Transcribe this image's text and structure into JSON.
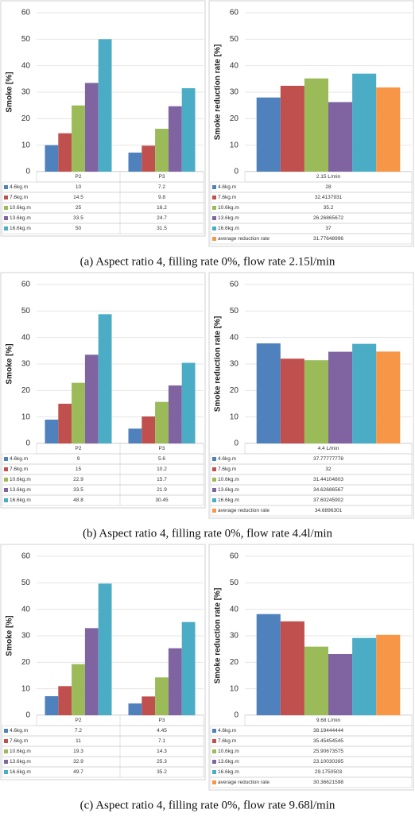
{
  "chart_data": [
    {
      "type": "bar",
      "ylabel": "Smoke [%]",
      "categories": [
        "P2",
        "P3"
      ],
      "ylim": [
        0,
        60
      ],
      "yticks": [
        0,
        10,
        20,
        30,
        40,
        50,
        60
      ],
      "grid": true,
      "series": [
        {
          "name": "4.6kg.m",
          "color": "#4f81bd",
          "values": [
            10,
            7.2
          ]
        },
        {
          "name": "7.6kg.m",
          "color": "#c0504d",
          "values": [
            14.5,
            9.8
          ]
        },
        {
          "name": "10.6kg.m",
          "color": "#9bbb59",
          "values": [
            25,
            16.2
          ]
        },
        {
          "name": "13.6kg.m",
          "color": "#8064a2",
          "values": [
            33.5,
            24.7
          ]
        },
        {
          "name": "16.6kg.m",
          "color": "#4bacc6",
          "values": [
            50,
            31.5
          ]
        }
      ]
    },
    {
      "type": "bar",
      "ylabel": "Smoke reduction rate [%]",
      "categories": [
        "2.15 L/min"
      ],
      "ylim": [
        0,
        60
      ],
      "yticks": [
        0,
        10,
        20,
        30,
        40,
        50,
        60
      ],
      "grid": true,
      "series": [
        {
          "name": "4.6kg.m",
          "color": "#4f81bd",
          "values": [
            28
          ]
        },
        {
          "name": "7.6kg.m",
          "color": "#c0504d",
          "values": [
            32.4137931
          ]
        },
        {
          "name": "10.6kg.m",
          "color": "#9bbb59",
          "values": [
            35.2
          ]
        },
        {
          "name": "13.6kg.m",
          "color": "#8064a2",
          "values": [
            26.26865672
          ]
        },
        {
          "name": "16.6kg.m",
          "color": "#4bacc6",
          "values": [
            37
          ]
        },
        {
          "name": "average reduction rate",
          "color": "#f79646",
          "values": [
            31.77648996
          ]
        }
      ]
    },
    {
      "type": "bar",
      "ylabel": "Smoke [%]",
      "categories": [
        "P2",
        "P3"
      ],
      "ylim": [
        0,
        60
      ],
      "yticks": [
        0,
        10,
        20,
        30,
        40,
        50,
        60
      ],
      "grid": true,
      "series": [
        {
          "name": "4.6kg.m",
          "color": "#4f81bd",
          "values": [
            9,
            5.6
          ]
        },
        {
          "name": "7.6kg.m",
          "color": "#c0504d",
          "values": [
            15,
            10.2
          ]
        },
        {
          "name": "10.6kg.m",
          "color": "#9bbb59",
          "values": [
            22.9,
            15.7
          ]
        },
        {
          "name": "13.6kg.m",
          "color": "#8064a2",
          "values": [
            33.5,
            21.9
          ]
        },
        {
          "name": "16.6kg.m",
          "color": "#4bacc6",
          "values": [
            48.8,
            30.45
          ]
        }
      ]
    },
    {
      "type": "bar",
      "ylabel": "Smoke reduction rate [%]",
      "categories": [
        "4.4 L/min"
      ],
      "ylim": [
        0,
        60
      ],
      "yticks": [
        0,
        10,
        20,
        30,
        40,
        50,
        60
      ],
      "grid": true,
      "series": [
        {
          "name": "4.6kg.m",
          "color": "#4f81bd",
          "values": [
            37.77777778
          ]
        },
        {
          "name": "7.6kg.m",
          "color": "#c0504d",
          "values": [
            32
          ]
        },
        {
          "name": "10.6kg.m",
          "color": "#9bbb59",
          "values": [
            31.44104803
          ]
        },
        {
          "name": "13.6kg.m",
          "color": "#8064a2",
          "values": [
            34.62686567
          ]
        },
        {
          "name": "16.6kg.m",
          "color": "#4bacc6",
          "values": [
            37.60245902
          ]
        },
        {
          "name": "average reduction rate",
          "color": "#f79646",
          "values": [
            34.6896301
          ]
        }
      ]
    },
    {
      "type": "bar",
      "ylabel": "Smoke [%]",
      "categories": [
        "P2",
        "P3"
      ],
      "ylim": [
        0,
        60
      ],
      "yticks": [
        0,
        10,
        20,
        30,
        40,
        50,
        60
      ],
      "grid": true,
      "series": [
        {
          "name": "4.6kg.m",
          "color": "#4f81bd",
          "values": [
            7.2,
            4.45
          ]
        },
        {
          "name": "7.6kg.m",
          "color": "#c0504d",
          "values": [
            11,
            7.1
          ]
        },
        {
          "name": "10.6kg.m",
          "color": "#9bbb59",
          "values": [
            19.3,
            14.3
          ]
        },
        {
          "name": "13.6kg.m",
          "color": "#8064a2",
          "values": [
            32.9,
            25.3
          ]
        },
        {
          "name": "16.6kg.m",
          "color": "#4bacc6",
          "values": [
            49.7,
            35.2
          ]
        }
      ]
    },
    {
      "type": "bar",
      "ylabel": "Smoke reduction rate [%]",
      "categories": [
        "9.68 L/min"
      ],
      "ylim": [
        0,
        60
      ],
      "yticks": [
        0,
        10,
        20,
        30,
        40,
        50,
        60
      ],
      "grid": true,
      "series": [
        {
          "name": "4.6kg.m",
          "color": "#4f81bd",
          "values": [
            38.19444444
          ]
        },
        {
          "name": "7.6kg.m",
          "color": "#c0504d",
          "values": [
            35.45454545
          ]
        },
        {
          "name": "10.6kg.m",
          "color": "#9bbb59",
          "values": [
            25.90673575
          ]
        },
        {
          "name": "13.6kg.m",
          "color": "#8064a2",
          "values": [
            23.10030395
          ]
        },
        {
          "name": "16.6kg.m",
          "color": "#4bacc6",
          "values": [
            29.1750503
          ]
        },
        {
          "name": "average reduction rate",
          "color": "#f79646",
          "values": [
            30.36621598
          ]
        }
      ]
    }
  ],
  "captions": [
    "(a) Aspect ratio 4, filling rate 0%, flow rate 2.15l/min",
    "(b) Aspect ratio 4, filling rate 0%, flow rate 4.4l/min",
    "(c) Aspect ratio 4, filling rate 0%, flow rate 9.68l/min"
  ]
}
